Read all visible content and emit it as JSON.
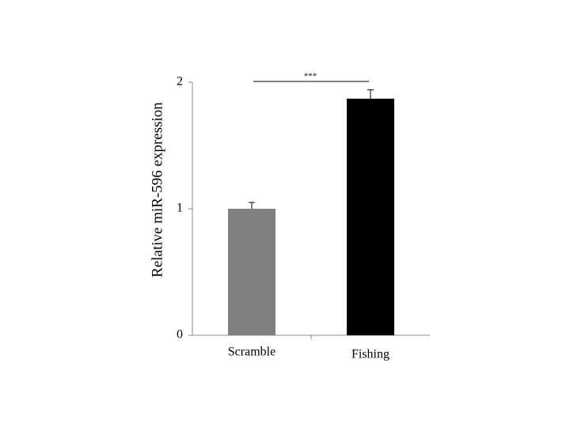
{
  "chart_data": {
    "type": "bar",
    "y_label": "Relative miR-596 expression",
    "categories": [
      "Scramble",
      "Fishing"
    ],
    "values": [
      1.0,
      1.87
    ],
    "errors": [
      0.05,
      0.07
    ],
    "colors": [
      "#808080",
      "#000000"
    ],
    "ylim": [
      0,
      2
    ],
    "yticks": [
      0,
      1,
      2
    ],
    "annotation": "***"
  }
}
